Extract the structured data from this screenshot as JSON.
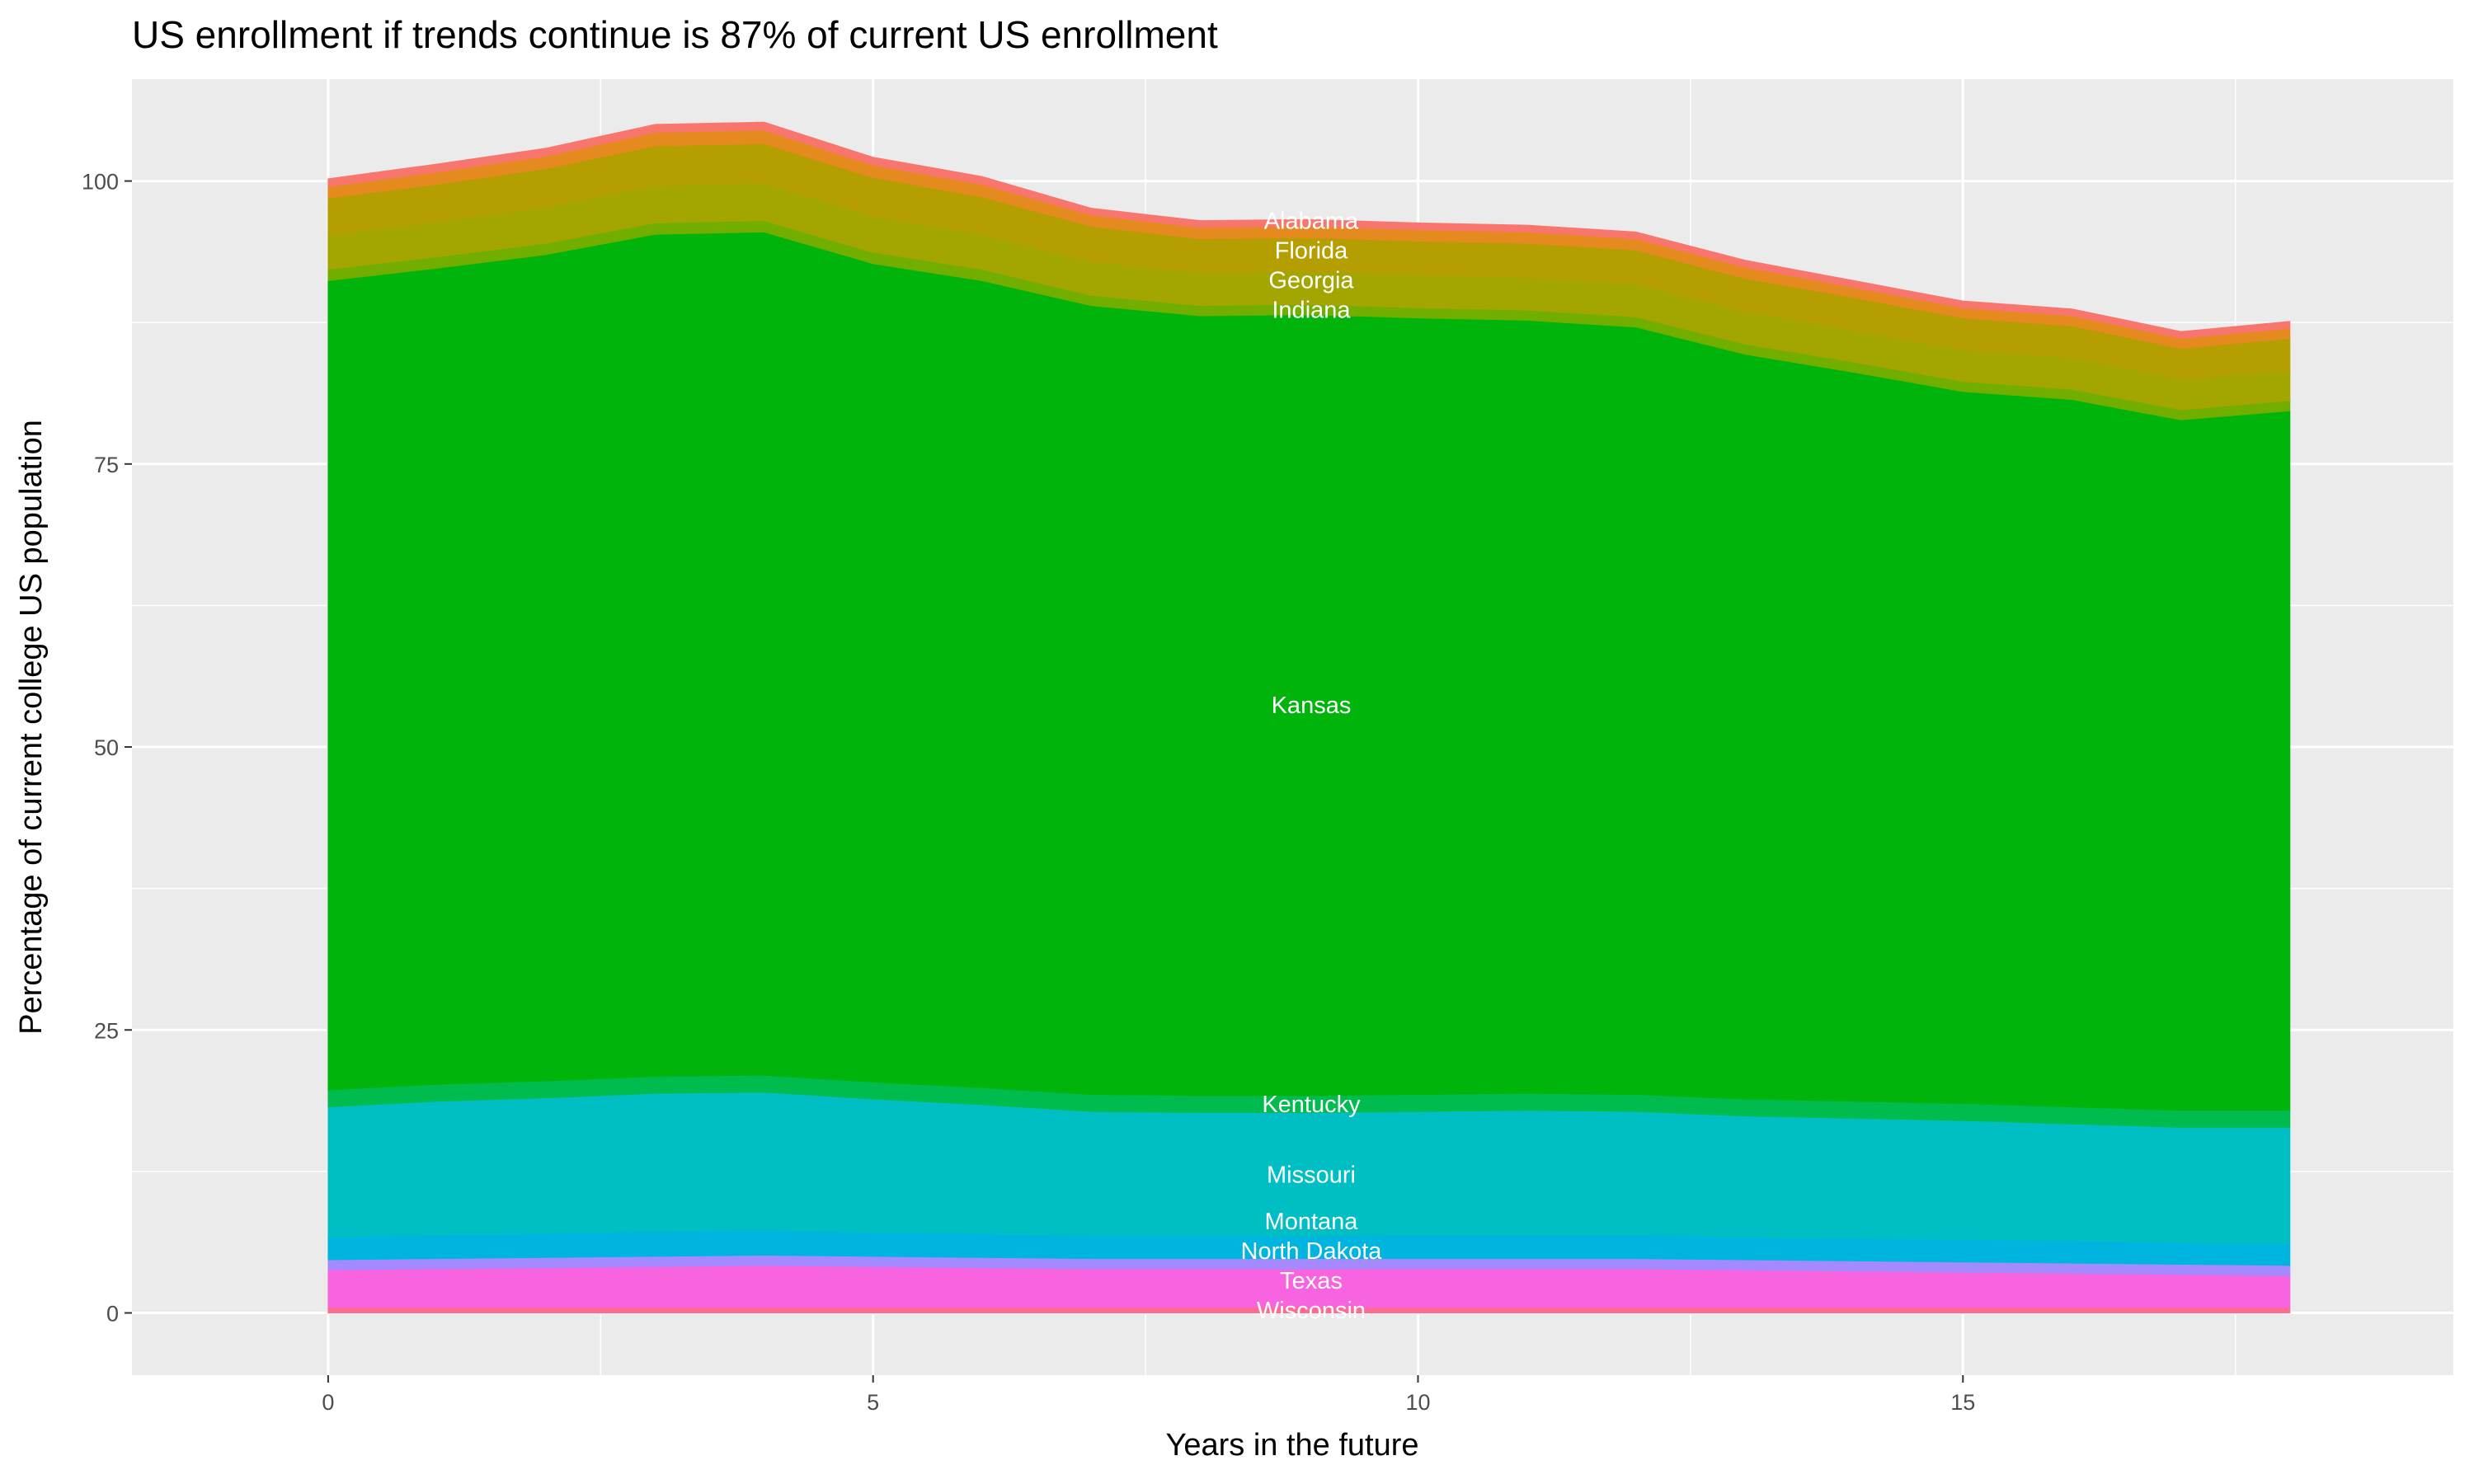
{
  "chart_data": {
    "type": "area",
    "stacked": true,
    "title": "US enrollment if trends continue is 87% of current US enrollment",
    "xlabel": "Years in the future",
    "ylabel": "Percentage of current college US population",
    "xlim": [
      -1.8,
      19.5
    ],
    "ylim": [
      -5.5,
      109
    ],
    "xticks": [
      0,
      5,
      10,
      15
    ],
    "yticks": [
      0,
      25,
      50,
      75,
      100
    ],
    "grid": true,
    "legend": "none",
    "x": [
      0,
      1,
      2,
      3,
      4,
      5,
      6,
      7,
      8,
      9,
      10,
      11,
      12,
      13,
      14,
      15,
      16,
      17,
      18
    ],
    "series": [
      {
        "name": "Wisconsin",
        "color": "#FF6C91",
        "values": [
          0.5,
          0.5,
          0.5,
          0.5,
          0.5,
          0.5,
          0.5,
          0.5,
          0.5,
          0.5,
          0.5,
          0.5,
          0.5,
          0.5,
          0.5,
          0.5,
          0.5,
          0.5,
          0.5
        ]
      },
      {
        "name": "Texas",
        "color": "#F863DF",
        "values": [
          3.3,
          3.4,
          3.5,
          3.6,
          3.7,
          3.6,
          3.5,
          3.4,
          3.4,
          3.4,
          3.4,
          3.4,
          3.4,
          3.3,
          3.2,
          3.1,
          3.0,
          2.9,
          2.8
        ]
      },
      {
        "name": "North Dakota",
        "color": "#A58AFF",
        "values": [
          0.9,
          0.9,
          0.9,
          0.9,
          0.9,
          0.9,
          0.9,
          0.9,
          0.9,
          0.9,
          0.9,
          0.9,
          0.9,
          0.9,
          0.9,
          0.9,
          0.9,
          0.9,
          0.9
        ]
      },
      {
        "name": "Montana",
        "color": "#00B4E0",
        "values": [
          2.0,
          2.1,
          2.1,
          2.2,
          2.2,
          2.1,
          2.1,
          2.0,
          2.0,
          2.0,
          2.1,
          2.1,
          2.1,
          2.0,
          2.0,
          2.0,
          2.0,
          1.9,
          1.9
        ]
      },
      {
        "name": "Missouri",
        "color": "#00BFC4",
        "values": [
          11.5,
          11.8,
          12.0,
          12.2,
          12.2,
          11.8,
          11.4,
          11.0,
          10.9,
          10.9,
          10.9,
          11.0,
          10.9,
          10.7,
          10.6,
          10.5,
          10.3,
          10.2,
          10.3
        ]
      },
      {
        "name": "Kentucky",
        "color": "#00BB4E",
        "values": [
          1.5,
          1.5,
          1.5,
          1.5,
          1.5,
          1.5,
          1.5,
          1.5,
          1.5,
          1.5,
          1.5,
          1.5,
          1.5,
          1.5,
          1.5,
          1.5,
          1.5,
          1.5,
          1.5
        ]
      },
      {
        "name": "Kansas",
        "color": "#00B40C",
        "values": [
          71.5,
          72.1,
          73.0,
          74.4,
          74.5,
          72.3,
          71.3,
          69.7,
          68.9,
          69.0,
          68.6,
          68.3,
          67.8,
          65.8,
          64.4,
          62.9,
          62.5,
          61.0,
          61.8
        ]
      },
      {
        "name": "Indiana",
        "color": "#72AE00",
        "values": [
          1.0,
          1.0,
          1.0,
          1.0,
          1.0,
          1.0,
          1.0,
          0.9,
          0.9,
          0.9,
          0.9,
          0.9,
          0.9,
          0.9,
          0.9,
          0.9,
          0.9,
          0.9,
          0.9
        ]
      },
      {
        "name": "Georgia",
        "color": "#A3A500",
        "values": [
          3.0,
          3.1,
          3.2,
          3.3,
          3.3,
          3.2,
          3.1,
          3.0,
          2.9,
          2.9,
          2.9,
          2.9,
          2.9,
          2.9,
          2.8,
          2.8,
          2.8,
          2.7,
          2.7
        ]
      },
      {
        "name": "Florida",
        "color": "#B49E00",
        "values": [
          3.3,
          3.3,
          3.4,
          3.5,
          3.5,
          3.4,
          3.3,
          3.1,
          3.0,
          3.0,
          3.0,
          3.0,
          3.0,
          2.9,
          2.9,
          2.8,
          2.8,
          2.7,
          2.8
        ]
      },
      {
        "name": "Alabama",
        "color": "#E58A1F",
        "values": [
          1.0,
          1.1,
          1.1,
          1.2,
          1.2,
          1.1,
          1.1,
          1.0,
          1.0,
          1.0,
          1.0,
          1.0,
          1.0,
          1.0,
          0.9,
          0.9,
          0.9,
          0.9,
          0.9
        ]
      },
      {
        "name": "",
        "color": "#F8766D",
        "values": [
          0.7,
          0.7,
          0.7,
          0.7,
          0.7,
          0.7,
          0.7,
          0.6,
          0.6,
          0.6,
          0.6,
          0.6,
          0.6,
          0.6,
          0.6,
          0.6,
          0.6,
          0.6,
          0.6
        ]
      }
    ],
    "label_x": 9
  }
}
